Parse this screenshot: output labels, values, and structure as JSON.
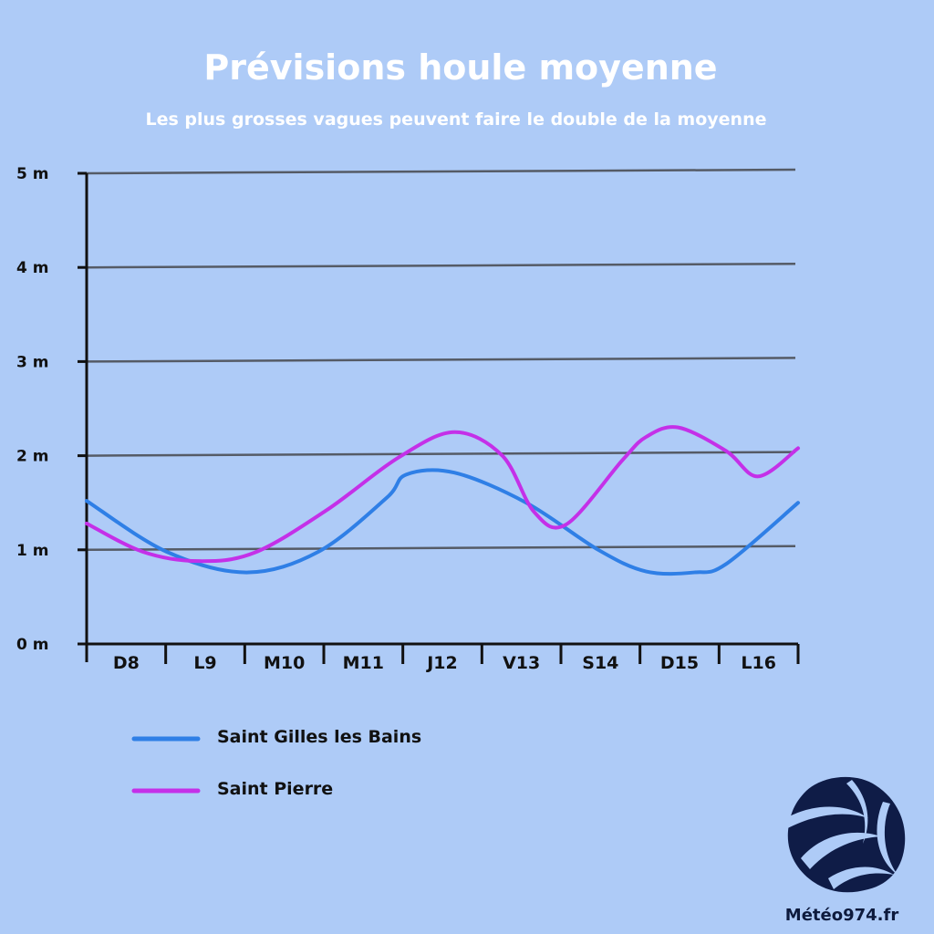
{
  "chart_data": {
    "type": "line",
    "title": "Prévisions houle moyenne",
    "subtitle": "Les plus grosses vagues peuvent faire le double de la moyenne",
    "categories": [
      "D8",
      "L9",
      "M10",
      "M11",
      "J12",
      "V13",
      "S14",
      "D15",
      "L16"
    ],
    "y_tick_labels": [
      "0 m",
      "1 m",
      "2 m",
      "3 m",
      "4 m",
      "5 m"
    ],
    "ylim": [
      0,
      5
    ],
    "grid": true,
    "legend_position": "bottom-left",
    "series": [
      {
        "name": "Saint Gilles les Bains",
        "color": "#2f7fe6",
        "x": [
          0.0,
          1.0,
          2.0,
          2.9,
          3.75,
          4.0,
          4.6,
          5.5,
          6.4,
          7.0,
          7.6,
          8.0,
          8.9
        ],
        "values": [
          1.52,
          0.98,
          0.76,
          0.98,
          1.55,
          1.8,
          1.82,
          1.5,
          1.0,
          0.77,
          0.76,
          0.85,
          1.5
        ]
      },
      {
        "name": "Saint Pierre",
        "color": "#c430e8",
        "x": [
          0.0,
          0.7,
          1.4,
          2.1,
          3.0,
          3.9,
          4.6,
          5.2,
          5.6,
          6.0,
          6.7,
          7.0,
          7.4,
          8.0,
          8.4,
          8.9
        ],
        "values": [
          1.28,
          0.98,
          0.88,
          0.97,
          1.42,
          1.98,
          2.25,
          2.0,
          1.4,
          1.27,
          1.95,
          2.2,
          2.3,
          2.05,
          1.78,
          2.08
        ]
      }
    ]
  },
  "brand": {
    "name": "Météo974.fr",
    "logo_color": "#0f1c47"
  }
}
